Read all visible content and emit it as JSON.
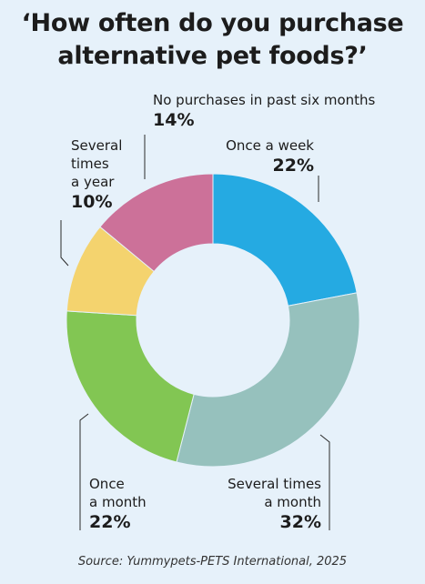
{
  "title_lines": [
    "‘How often do you purchase",
    "alternative pet foods?’"
  ],
  "source": "Source: Yummypets-PETS International, 2025",
  "chart_data": {
    "type": "pie",
    "donut": true,
    "title": "‘How often do you purchase alternative pet foods?’",
    "categories": [
      "Once a week",
      "Several times a month",
      "Once a month",
      "Several times a year",
      "No purchases in past six months"
    ],
    "values": [
      22,
      32,
      22,
      10,
      14
    ],
    "unit": "%",
    "colors": [
      "#25aae2",
      "#96c1bd",
      "#82c653",
      "#f4d36e",
      "#cc7199"
    ]
  },
  "labels": [
    {
      "lines": [
        "Once a week"
      ],
      "pct": "22%"
    },
    {
      "lines": [
        "Several times",
        "a month"
      ],
      "pct": "32%"
    },
    {
      "lines": [
        "Once",
        "a month"
      ],
      "pct": "22%"
    },
    {
      "lines": [
        "Several",
        "times",
        "a year"
      ],
      "pct": "10%"
    },
    {
      "lines": [
        "No purchases in past six months"
      ],
      "pct": "14%"
    }
  ]
}
